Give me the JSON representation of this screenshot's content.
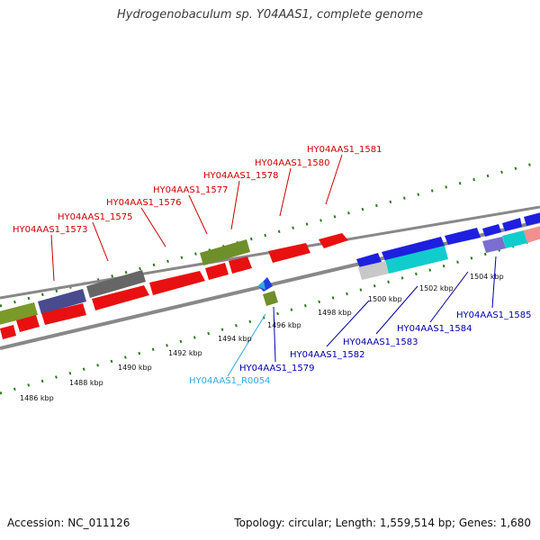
{
  "title": "Hydrogenobaculum sp. Y04AAS1, complete genome",
  "footer": {
    "accession": "Accession: NC_011126",
    "stats": "Topology: circular; Length: 1,559,514 bp; Genes: 1,680"
  },
  "colors": {
    "forward_label": "#cc0000",
    "reverse_label": "#0000aa",
    "rna_label": "#33aadd",
    "tick": "#2d7a1f",
    "backbone": "#888888"
  },
  "scale_labels": [
    "1486 kbp",
    "1488 kbp",
    "1490 kbp",
    "1492 kbp",
    "1494 kbp",
    "1496 kbp",
    "1498 kbp",
    "1500 kbp",
    "1502 kbp",
    "1504 kbp"
  ],
  "forward_genes": [
    "HY04AAS1_1573",
    "HY04AAS1_1575",
    "HY04AAS1_1576",
    "HY04AAS1_1577",
    "HY04AAS1_1578",
    "HY04AAS1_1580",
    "HY04AAS1_1581"
  ],
  "reverse_genes": [
    "HY04AAS1_R0054",
    "HY04AAS1_1579",
    "HY04AAS1_1582",
    "HY04AAS1_1583",
    "HY04AAS1_1584",
    "HY04AAS1_1585"
  ]
}
